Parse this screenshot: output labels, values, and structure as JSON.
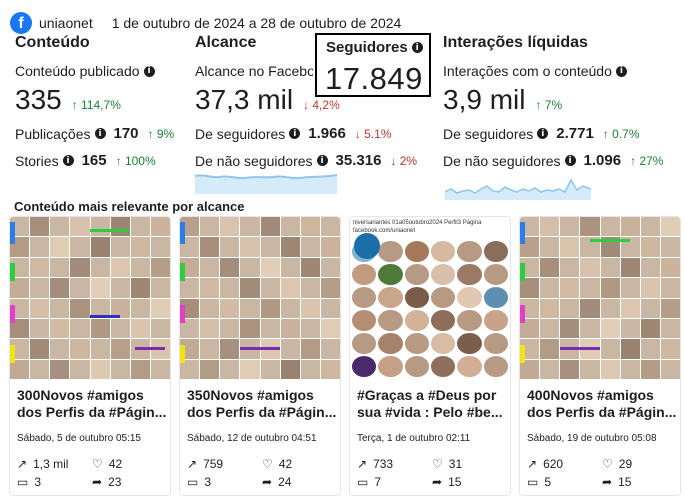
{
  "header": {
    "account": "uniaonet",
    "date_range": "1 de outubro de 2024 a 28 de outubro de 2024"
  },
  "content": {
    "title": "Conteúdo",
    "subtitle": "Conteúdo publicado",
    "total": "335",
    "total_change": "↑ 114,7%",
    "posts_label": "Publicações",
    "posts_value": "170",
    "posts_change": "↑ 9%",
    "stories_label": "Stories",
    "stories_value": "165",
    "stories_change": "↑ 100%"
  },
  "reach": {
    "title": "Alcance",
    "subtitle": "Alcance no Facebook",
    "total": "37,3 mil",
    "total_change": "↓ 4,2%",
    "followers_label": "De seguidores",
    "followers_value": "1.966",
    "followers_change": "↓ 5.1%",
    "nonfollowers_label": "De não seguidores",
    "nonfollowers_value": "35.316",
    "nonfollowers_change": "↓ 2%"
  },
  "followers": {
    "title": "Seguidores",
    "total": "17.849"
  },
  "interactions": {
    "title": "Interações líquidas",
    "subtitle": "Interações com o conteúdo",
    "total": "3,9 mil",
    "total_change": "↑ 7%",
    "followers_label": "De seguidores",
    "followers_value": "2.771",
    "followers_change": "↑ 0.7%",
    "nonfollowers_label": "De não seguidores",
    "nonfollowers_value": "1.096",
    "nonfollowers_change": "↑ 27%"
  },
  "top_content": {
    "title": "Conteúdo mais relevante por alcance",
    "banner_text": "niversariantes 01a05outubro2024 Perfil3 Página facebook.com/uniaonet",
    "cards": [
      {
        "title_line1": "300Novos #amigos",
        "title_line2": "dos Perfis da #Págin...",
        "date": "Sábado, 5 de outubro 05:15",
        "reach": "1,3 mil",
        "likes": "42",
        "comments": "3",
        "shares": "23"
      },
      {
        "title_line1": "350Novos #amigos",
        "title_line2": "dos Perfis da #Págin...",
        "date": "Sábado, 12 de outubro 04:51",
        "reach": "759",
        "likes": "42",
        "comments": "3",
        "shares": "24"
      },
      {
        "title_line1": "#Graças a #Deus por",
        "title_line2": "sua #vida : Pelo #be...",
        "date": "Terça, 1 de outubro 02:11",
        "reach": "733",
        "likes": "31",
        "comments": "7",
        "shares": "15"
      },
      {
        "title_line1": "400Novos #amigos",
        "title_line2": "dos Perfis da #Págin...",
        "date": "Sábado, 19 de outubro 05:08",
        "reach": "620",
        "likes": "29",
        "comments": "5",
        "shares": "15"
      }
    ]
  },
  "icons": {
    "reach": "trend-arrow-icon",
    "likes": "heart-icon",
    "comments": "comment-icon",
    "shares": "share-arrow-icon",
    "info": "info-icon"
  },
  "colors": {
    "up": "#1a7f37",
    "down": "#c0392b",
    "brand": "#1877f2",
    "spark": "#a9d3f0"
  }
}
